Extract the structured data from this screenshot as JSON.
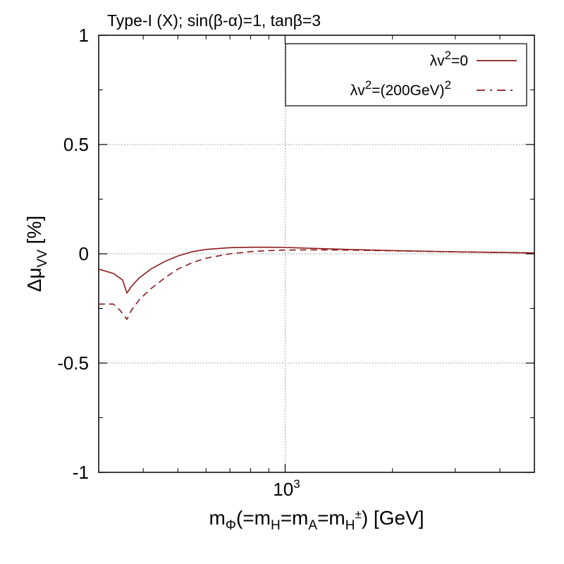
{
  "chart_data": {
    "type": "line",
    "title": "Type-I (X); sin(β-α)=1, tanβ=3",
    "xlabel": "mΦ(=mH=mA=mH±) [GeV]",
    "xlabel_parts": {
      "m1": "m",
      "sub1": "Φ",
      "t1": "(=m",
      "sub2": "H",
      "t2": "=m",
      "sub3": "A",
      "t3": "=m",
      "sub4": "H",
      "sup4": "±",
      "t4": ") [GeV]"
    },
    "ylabel": "Δμ_VV [%]",
    "ylabel_parts": {
      "delta_mu": "Δμ",
      "sub": "VV",
      "unit": " [%]"
    },
    "x_scale": "log",
    "xlim": [
      300,
      5000
    ],
    "ylim": [
      -1,
      1
    ],
    "y_ticks": [
      "1",
      "0.5",
      "0",
      "-0.5",
      "-1"
    ],
    "y_tick_values": [
      1,
      0.5,
      0,
      -0.5,
      -1
    ],
    "x_tick_label": {
      "base": "10",
      "exp": "3",
      "value": 1000
    },
    "grid": true,
    "legend_position": "top-right",
    "series": [
      {
        "name": "λv²=0",
        "legend_base": "λv",
        "legend_sup": "2",
        "legend_rest": "=0",
        "style": "solid",
        "color": "#8b1a1a",
        "x": [
          300,
          330,
          350,
          360,
          370,
          390,
          420,
          460,
          500,
          550,
          600,
          700,
          800,
          900,
          1000,
          1200,
          1500,
          2000,
          3000,
          4000,
          5000
        ],
        "y": [
          -0.07,
          -0.09,
          -0.12,
          -0.18,
          -0.15,
          -0.11,
          -0.07,
          -0.035,
          -0.01,
          0.01,
          0.02,
          0.028,
          0.03,
          0.03,
          0.029,
          0.025,
          0.02,
          0.015,
          0.009,
          0.006,
          0.004
        ]
      },
      {
        "name": "λv²=(200GeV)²",
        "legend_base": "λv",
        "legend_sup": "2",
        "legend_mid": "=(200GeV)",
        "legend_sup2": "2",
        "style": "dashed",
        "color": "#8b1a1a",
        "x": [
          300,
          330,
          345,
          360,
          370,
          390,
          420,
          460,
          500,
          550,
          600,
          700,
          800,
          900,
          1000,
          1200,
          1500,
          2000,
          3000,
          4000,
          5000
        ],
        "y": [
          -0.23,
          -0.23,
          -0.26,
          -0.3,
          -0.26,
          -0.21,
          -0.16,
          -0.11,
          -0.07,
          -0.04,
          -0.02,
          0.0,
          0.01,
          0.015,
          0.017,
          0.018,
          0.017,
          0.014,
          0.009,
          0.006,
          0.004
        ]
      }
    ]
  }
}
